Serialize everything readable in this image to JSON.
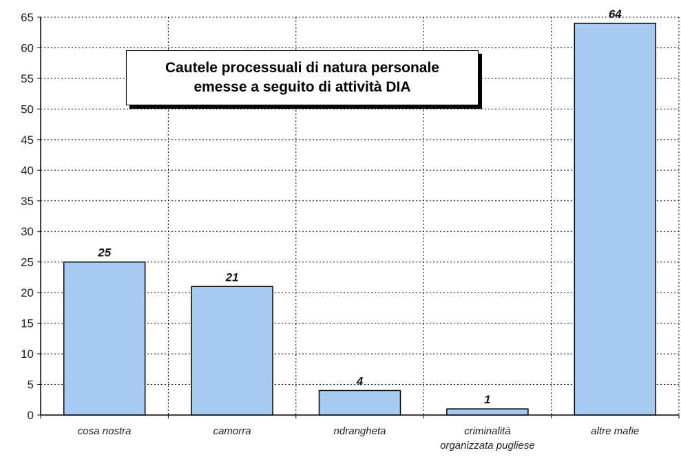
{
  "chart_data": {
    "type": "bar",
    "title_lines": [
      "Cautele processuali di natura personale",
      "emesse a seguito di attività DIA"
    ],
    "categories": [
      [
        "cosa nostra"
      ],
      [
        "camorra"
      ],
      [
        "ndrangheta"
      ],
      [
        "criminalità",
        "organizzata pugliese"
      ],
      [
        "altre mafie"
      ]
    ],
    "values": [
      25,
      21,
      4,
      1,
      64
    ],
    "ylim": [
      0,
      65
    ],
    "yticks": [
      0,
      5,
      10,
      15,
      20,
      25,
      30,
      35,
      40,
      45,
      50,
      55,
      60,
      65
    ],
    "grid": true,
    "bar_color": "#a6caf0",
    "bar_stroke": "#000000",
    "legend": "none"
  }
}
